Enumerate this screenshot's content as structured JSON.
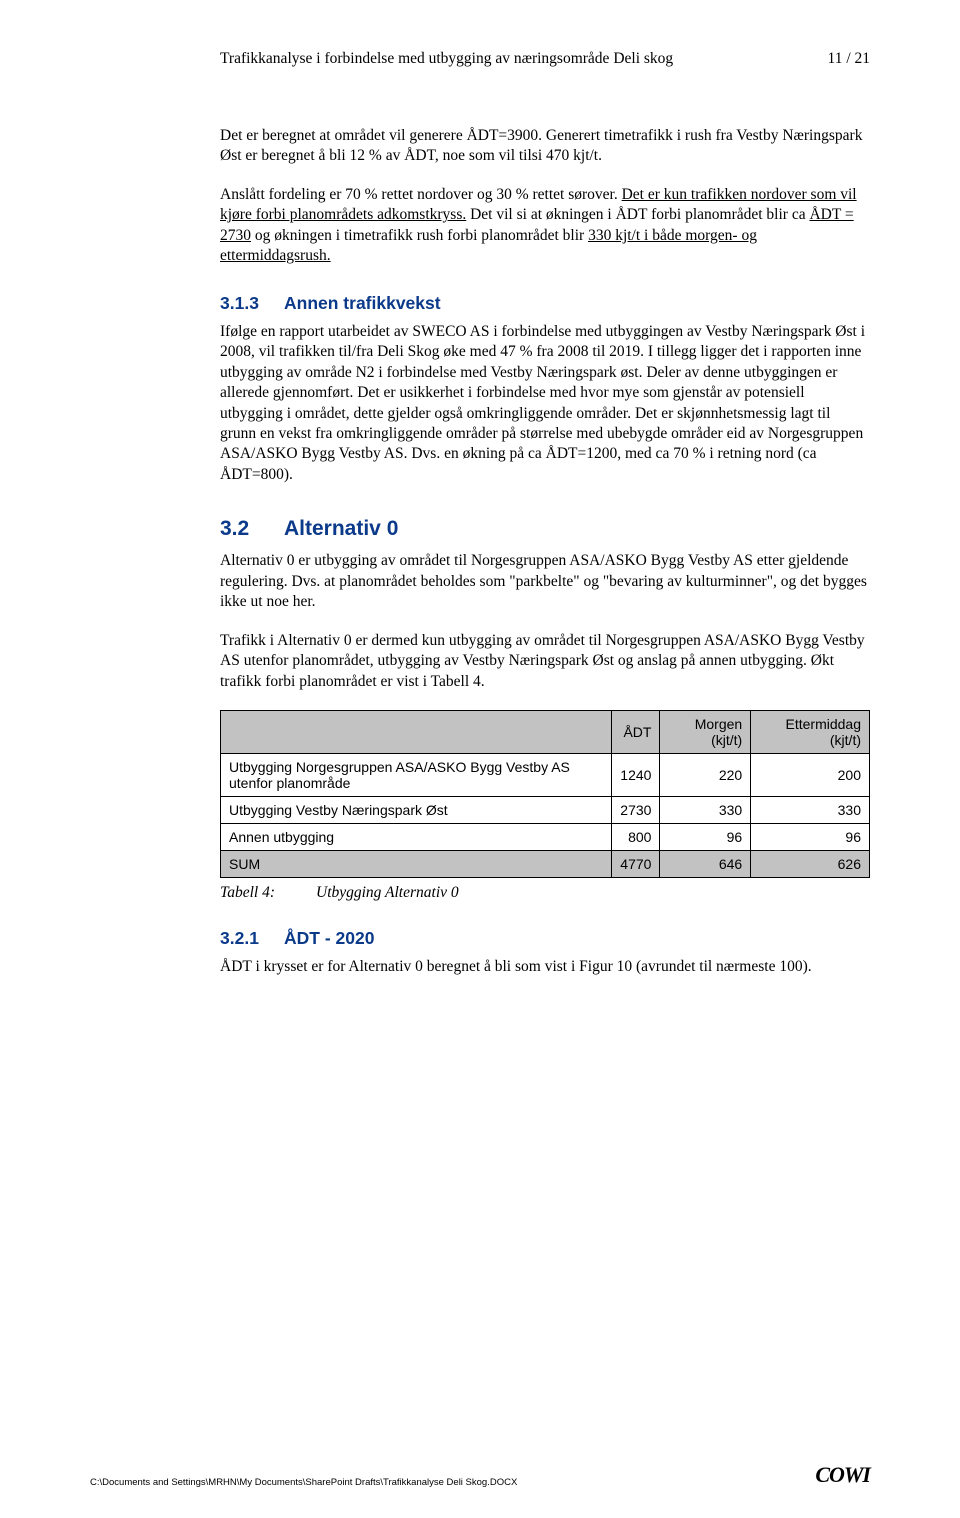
{
  "header": {
    "title": "Trafikkanalyse i forbindelse med utbygging av næringsområde Deli skog",
    "page": "11 / 21"
  },
  "p1_a": "Det er beregnet at området vil generere ÅDT=3900. Generert timetrafikk i rush fra Vestby Næringspark Øst er beregnet å bli 12 % av ÅDT, noe som vil tilsi 470 kjt/t.",
  "p2_a": "Anslått fordeling er 70 % rettet nordover og 30 % rettet sørover. ",
  "p2_u1": "Det er kun trafikken nordover som vil kjøre forbi planområdets adkomstkryss.",
  "p2_b": " Det vil si at økningen i ÅDT forbi planområdet blir ca ",
  "p2_u2": "ÅDT = 2730",
  "p2_c": " og økningen i timetrafikk rush forbi planområdet blir ",
  "p2_u3": "330 kjt/t i både morgen- og ettermiddagsrush.",
  "sec313_num": "3.1.3",
  "sec313_title": "Annen trafikkvekst",
  "p3": "Ifølge en rapport utarbeidet av SWECO AS i forbindelse med utbyggingen av Vestby Næringspark Øst i 2008, vil trafikken til/fra Deli Skog øke med 47 % fra 2008 til 2019. I tillegg ligger det i rapporten inne utbygging av område N2 i forbindelse med Vestby Næringspark øst. Deler av denne utbyggingen er allerede gjennomført. Det er usikkerhet i forbindelse med hvor mye som gjenstår av potensiell utbygging i området, dette gjelder også omkringliggende områder. Det er skjønnhetsmessig lagt til grunn en vekst fra omkringliggende områder på størrelse med ubebygde områder eid av Norgesgruppen ASA/ASKO Bygg Vestby AS. Dvs. en økning på ca ÅDT=1200, med ca 70 % i retning nord (ca ÅDT=800).",
  "sec32_num": "3.2",
  "sec32_title": "Alternativ 0",
  "p4": "Alternativ 0 er utbygging av området til Norgesgruppen ASA/ASKO Bygg Vestby AS etter gjeldende regulering. Dvs. at planområdet beholdes som \"parkbelte\" og \"bevaring av kulturminner\", og det bygges ikke ut noe her.",
  "p5": "Trafikk i Alternativ 0 er dermed kun utbygging av området til Norgesgruppen ASA/ASKO Bygg Vestby AS utenfor planområdet, utbygging av Vestby Næringspark Øst og anslag på annen utbygging. Økt trafikk forbi planområdet er vist i Tabell 4.",
  "table": {
    "headers": [
      "",
      "ÅDT",
      "Morgen (kjt/t)",
      "Ettermiddag (kjt/t)"
    ],
    "rows": [
      {
        "label": "Utbygging Norgesgruppen ASA/ASKO Bygg Vestby AS utenfor planområde",
        "c1": "1240",
        "c2": "220",
        "c3": "200"
      },
      {
        "label": "Utbygging Vestby Næringspark Øst",
        "c1": "2730",
        "c2": "330",
        "c3": "330"
      },
      {
        "label": "Annen utbygging",
        "c1": "800",
        "c2": "96",
        "c3": "96"
      },
      {
        "label": "SUM",
        "c1": "4770",
        "c2": "646",
        "c3": "626"
      }
    ],
    "caption_num": "Tabell 4:",
    "caption_text": "Utbygging Alternativ 0",
    "header_bg": "#c2c2c2",
    "sum_bg": "#c2c2c2",
    "border_color": "#000000",
    "font_family": "Arial",
    "font_size_pt": 10.5
  },
  "sec321_num": "3.2.1",
  "sec321_title": "ÅDT - 2020",
  "p6": "ÅDT i krysset er for Alternativ 0 beregnet å bli som vist i Figur 10 (avrundet til nærmeste 100).",
  "footer": {
    "path": "C:\\Documents and Settings\\MRHN\\My Documents\\SharePoint Drafts\\Trafikkanalyse Deli Skog.DOCX",
    "logo": "COWI"
  },
  "colors": {
    "heading": "#0b3a8a",
    "text": "#000000",
    "background": "#ffffff"
  }
}
